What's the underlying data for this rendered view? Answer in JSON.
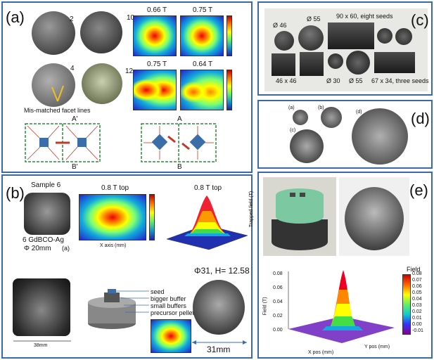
{
  "panel_a": {
    "label": "(a)",
    "photo_numbers": [
      "2",
      "4",
      "10",
      "12"
    ],
    "field_titles": [
      "0.66 T",
      "0.75 T",
      "0.75 T",
      "0.64 T"
    ],
    "annotation": "Mis-matched facet lines",
    "arrow_labels": [
      "A'",
      "B'",
      "A",
      "B"
    ]
  },
  "panel_b": {
    "label": "(b)",
    "sample_title": "Sample 6",
    "map_title": "0.8 T top",
    "surface_title": "0.8 T top",
    "x_axis_label": "X axis (mm)",
    "z_axis_label": "Trapped field (T)",
    "sample_caption_line1": "6  GdBCO-Ag",
    "sample_caption_line2": "Φ 20mm",
    "sub_label": "(a)",
    "spec": "Φ31, H= 12.58",
    "legend": [
      "seed",
      "bigger buffer",
      "small buffers",
      "precursor pellet"
    ],
    "dimensions": [
      "38mm",
      "31mm"
    ]
  },
  "panel_c": {
    "label": "(c)",
    "sizes": [
      "Ø 46",
      "Ø 55",
      "90 x 60, eight seeds",
      "46 x 46",
      "Ø 30",
      "Ø 55",
      "67 x 34, three seeds"
    ]
  },
  "panel_d": {
    "label": "(d)",
    "sub_labels": [
      "(a)",
      "(b)",
      "(c)",
      "(d)"
    ]
  },
  "panel_e": {
    "label": "(e)",
    "legend_title": "Field",
    "legend_values": [
      "0.08",
      "0.07",
      "0.06",
      "0.05",
      "0.04",
      "0.03",
      "0.02",
      "0.01",
      "0.00",
      "-0.01"
    ],
    "z_ticks": [
      "0.08",
      "0.06",
      "0.04",
      "0.02",
      "0.00"
    ],
    "z_axis_label": "Field (T)",
    "x_axis_label": "X pos (mm)",
    "y_axis_label": "Y pos (mm)"
  },
  "colors": {
    "frame": "#3a6aa6",
    "hot": "#e00000",
    "cold": "#2222cc",
    "facet_line": "#c0392b",
    "seed": "#3b6ea8"
  }
}
